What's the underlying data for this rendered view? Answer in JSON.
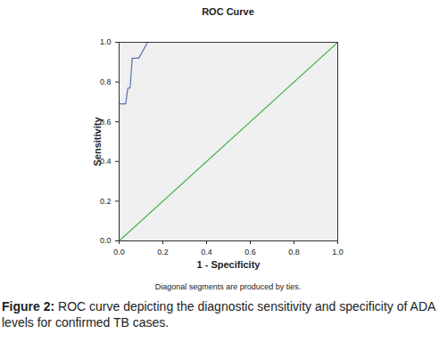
{
  "chart_data": {
    "type": "line",
    "title": "ROC Curve",
    "xlabel": "1 - Specificity",
    "ylabel": "Sensitivity",
    "xlim": [
      0,
      1
    ],
    "ylim": [
      0,
      1
    ],
    "xticks": [
      {
        "value": 0,
        "label": "0.0"
      },
      0.2,
      0.4,
      0.6,
      0.8,
      {
        "value": 1,
        "label": "1.0"
      }
    ],
    "yticks": [
      {
        "value": 0,
        "label": "0.0"
      },
      0.2,
      0.4,
      0.6,
      0.8,
      {
        "value": 1,
        "label": "1.0"
      }
    ],
    "grid": false,
    "series": [
      {
        "color": "#5a6db3",
        "x": [
          0,
          0,
          0.03,
          0.04,
          0.05,
          0.06,
          0.09,
          0.13,
          1
        ],
        "values": [
          0,
          0.69,
          0.69,
          0.77,
          0.77,
          0.92,
          0.92,
          1,
          1
        ]
      },
      {
        "color": "#3cb043",
        "x": [
          0,
          1
        ],
        "values": [
          0,
          1
        ]
      }
    ],
    "note": "Diagonal segments are produced by ties.",
    "caption": {
      "label": "Figure 2:",
      "text": "ROC curve depicting the diagnostic sensitivity and specificity of ADA levels for confirmed TB cases."
    }
  }
}
